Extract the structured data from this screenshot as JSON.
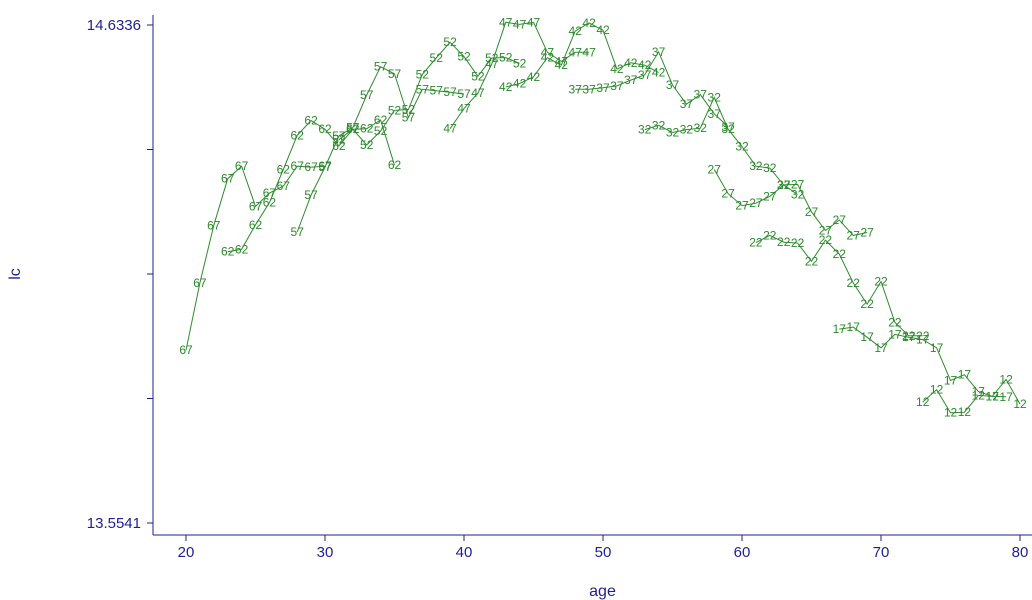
{
  "chart_data": {
    "type": "line",
    "xlabel": "age",
    "ylabel": "lc",
    "xlim": [
      20,
      80
    ],
    "ylim": [
      13.5541,
      14.6336
    ],
    "xticks": [
      "20",
      "30",
      "40",
      "50",
      "60",
      "70",
      "80"
    ],
    "yticks": [
      "13.5541",
      "14.6336"
    ],
    "grid": false,
    "colors": {
      "axis": "#1f1f8f",
      "series": "#2e8b2e"
    },
    "series": [
      {
        "label": "67",
        "points": [
          [
            20,
            13.9287
          ],
          [
            21,
            14.0745
          ],
          [
            22,
            14.1995
          ],
          [
            23,
            14.3005
          ],
          [
            24,
            14.3276
          ],
          [
            25,
            14.2401
          ],
          [
            26,
            14.2693
          ],
          [
            27,
            14.2844
          ],
          [
            28,
            14.3276
          ],
          [
            29,
            14.3255
          ],
          [
            30,
            14.3276
          ]
        ]
      },
      {
        "label": "62",
        "points": [
          [
            23,
            14.1422
          ],
          [
            24,
            14.1474
          ],
          [
            25,
            14.2005
          ],
          [
            26,
            14.2484
          ],
          [
            27,
            14.3203
          ],
          [
            28,
            14.3943
          ],
          [
            29,
            14.4266
          ],
          [
            30,
            14.4078
          ],
          [
            31,
            14.3713
          ],
          [
            32,
            14.4078
          ],
          [
            33,
            14.4089
          ],
          [
            34,
            14.4276
          ],
          [
            35,
            14.3297
          ]
        ]
      },
      {
        "label": "57",
        "points": [
          [
            28,
            14.1849
          ],
          [
            29,
            14.2651
          ],
          [
            30,
            14.3255
          ],
          [
            31,
            14.3932
          ],
          [
            32,
            14.4109
          ],
          [
            33,
            14.4818
          ],
          [
            34,
            14.5432
          ],
          [
            35,
            14.5276
          ],
          [
            36,
            14.4328
          ],
          [
            37,
            14.4943
          ],
          [
            38,
            14.4911
          ],
          [
            39,
            14.488
          ],
          [
            40,
            14.4839
          ]
        ]
      },
      {
        "label": "52",
        "points": [
          [
            31,
            14.3849
          ],
          [
            32,
            14.4078
          ],
          [
            33,
            14.3734
          ],
          [
            34,
            14.4036
          ],
          [
            35,
            14.4484
          ],
          [
            36,
            14.4505
          ],
          [
            37,
            14.5266
          ],
          [
            38,
            14.562
          ],
          [
            39,
            14.5964
          ],
          [
            40,
            14.5651
          ],
          [
            41,
            14.5224
          ],
          [
            42,
            14.562
          ],
          [
            43,
            14.563
          ],
          [
            44,
            14.5505
          ]
        ]
      },
      {
        "label": "47",
        "points": [
          [
            39,
            14.4089
          ],
          [
            40,
            14.4526
          ],
          [
            41,
            14.4859
          ],
          [
            42,
            14.5495
          ],
          [
            43,
            14.6395
          ],
          [
            44,
            14.6349
          ],
          [
            45,
            14.6395
          ],
          [
            46,
            14.5745
          ],
          [
            47,
            14.5547
          ],
          [
            48,
            14.5745
          ],
          [
            49,
            14.5745
          ]
        ]
      },
      {
        "label": "42",
        "points": [
          [
            43,
            14.4995
          ],
          [
            44,
            14.5068
          ],
          [
            45,
            14.5214
          ],
          [
            46,
            14.563
          ],
          [
            47,
            14.5464
          ],
          [
            48,
            14.6203
          ],
          [
            49,
            14.638
          ],
          [
            50,
            14.6224
          ],
          [
            51,
            14.538
          ],
          [
            52,
            14.5516
          ],
          [
            53,
            14.5464
          ],
          [
            54,
            14.5307
          ]
        ]
      },
      {
        "label": "37",
        "points": [
          [
            48,
            14.4943
          ],
          [
            49,
            14.4943
          ],
          [
            50,
            14.4974
          ],
          [
            51,
            14.5016
          ],
          [
            52,
            14.5141
          ],
          [
            53,
            14.5255
          ],
          [
            54,
            14.5755
          ],
          [
            55,
            14.5036
          ],
          [
            56,
            14.462
          ],
          [
            57,
            14.4828
          ],
          [
            58,
            14.4411
          ],
          [
            59,
            14.413
          ]
        ]
      },
      {
        "label": "32",
        "points": [
          [
            53,
            14.4068
          ],
          [
            54,
            14.4161
          ],
          [
            55,
            14.4005
          ],
          [
            56,
            14.4068
          ],
          [
            57,
            14.4099
          ],
          [
            58,
            14.4766
          ],
          [
            59,
            14.4078
          ],
          [
            60,
            14.3703
          ],
          [
            61,
            14.3276
          ],
          [
            62,
            14.3234
          ],
          [
            63,
            14.287
          ],
          [
            64,
            14.2661
          ]
        ]
      },
      {
        "label": "27",
        "points": [
          [
            58,
            14.3203
          ],
          [
            59,
            14.2682
          ],
          [
            60,
            14.2422
          ],
          [
            61,
            14.2474
          ],
          [
            62,
            14.262
          ],
          [
            63,
            14.287
          ],
          [
            64,
            14.288
          ],
          [
            65,
            14.2286
          ],
          [
            66,
            14.188
          ],
          [
            67,
            14.2109
          ],
          [
            68,
            14.1776
          ],
          [
            69,
            14.1839
          ]
        ]
      },
      {
        "label": "22",
        "points": [
          [
            61,
            14.162
          ],
          [
            62,
            14.1776
          ],
          [
            63,
            14.163
          ],
          [
            64,
            14.1609
          ],
          [
            65,
            14.1214
          ],
          [
            66,
            14.1672
          ],
          [
            67,
            14.137
          ],
          [
            68,
            14.0745
          ],
          [
            69,
            14.0286
          ],
          [
            70,
            14.0776
          ],
          [
            71,
            13.9891
          ],
          [
            72,
            13.9599
          ],
          [
            73,
            13.9599
          ]
        ]
      },
      {
        "label": "17",
        "points": [
          [
            67,
            13.9745
          ],
          [
            68,
            13.9787
          ],
          [
            69,
            13.9568
          ],
          [
            70,
            13.9338
          ],
          [
            71,
            13.963
          ],
          [
            72,
            13.9568
          ],
          [
            73,
            13.9516
          ],
          [
            74,
            13.9338
          ],
          [
            75,
            13.863
          ],
          [
            76,
            13.8755
          ],
          [
            77,
            13.8391
          ],
          [
            78,
            13.8286
          ],
          [
            79,
            13.8276
          ]
        ]
      },
      {
        "label": "12",
        "points": [
          [
            73,
            13.8161
          ],
          [
            74,
            13.8432
          ],
          [
            75,
            13.7932
          ],
          [
            76,
            13.7943
          ],
          [
            77,
            13.8307
          ],
          [
            78,
            13.8286
          ],
          [
            79,
            13.8651
          ],
          [
            80,
            13.812
          ]
        ]
      }
    ]
  }
}
